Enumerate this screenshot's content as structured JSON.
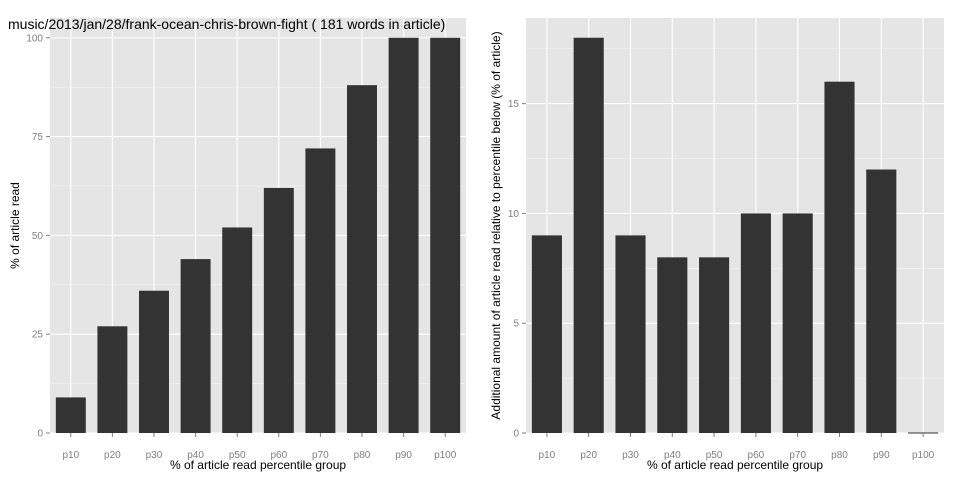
{
  "chart_data": [
    {
      "type": "bar",
      "title": "music/2013/jan/28/frank-ocean-chris-brown-fight ( 181 words in article)",
      "xlabel": "% of article read percentile group",
      "ylabel": "% of article read",
      "categories": [
        "p10",
        "p20",
        "p30",
        "p40",
        "p50",
        "p60",
        "p70",
        "p80",
        "p90",
        "p100"
      ],
      "values": [
        9,
        27,
        36,
        44,
        52,
        62,
        72,
        88,
        100,
        100
      ],
      "ylim": [
        0,
        105
      ],
      "yticks": [
        0,
        25,
        50,
        75,
        100
      ],
      "grid": true,
      "bar_color": "#333333",
      "panel_color": "#e5e5e5"
    },
    {
      "type": "bar",
      "title": "",
      "xlabel": "% of article read percentile group",
      "ylabel": "Additional amount of article read relative to percentile below (% of article)",
      "categories": [
        "p10",
        "p20",
        "p30",
        "p40",
        "p50",
        "p60",
        "p70",
        "p80",
        "p90",
        "p100"
      ],
      "values": [
        9,
        18,
        9,
        8,
        8,
        10,
        10,
        16,
        12,
        0
      ],
      "ylim": [
        0,
        18.9
      ],
      "yticks": [
        0,
        5,
        10,
        15
      ],
      "grid": true,
      "bar_color": "#333333",
      "panel_color": "#e5e5e5"
    }
  ]
}
